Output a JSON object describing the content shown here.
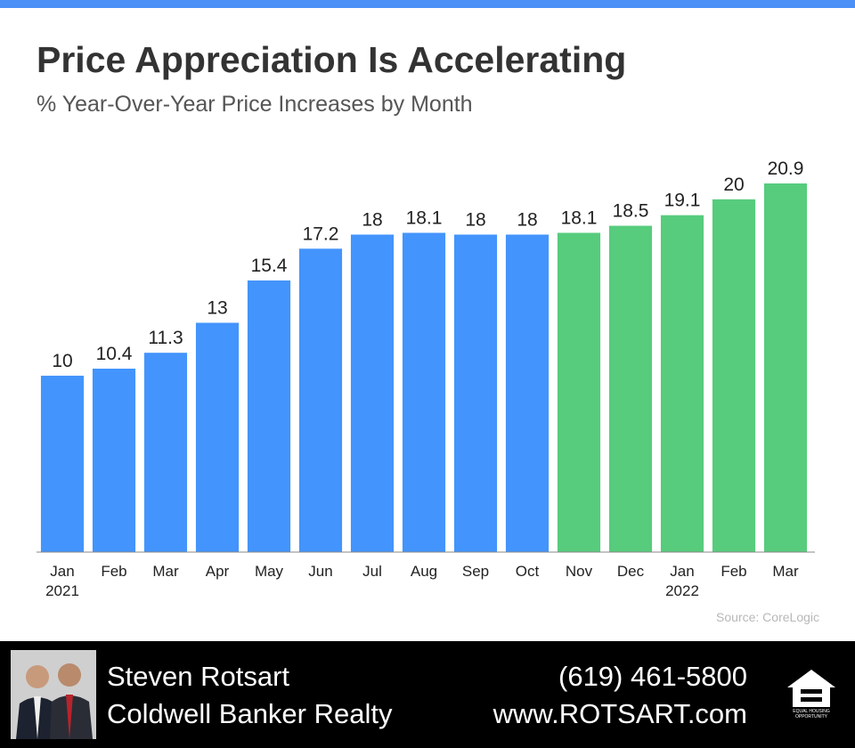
{
  "colors": {
    "top_bar": "#4a90f7",
    "blue_bar": "#4394fc",
    "green_bar": "#57cc7d",
    "axis": "#888888"
  },
  "chart_data": {
    "type": "bar",
    "title": "Price Appreciation Is Accelerating",
    "subtitle": "% Year-Over-Year Price Increases by Month",
    "categories": [
      "Jan",
      "Feb",
      "Mar",
      "Apr",
      "May",
      "Jun",
      "Jul",
      "Aug",
      "Sep",
      "Oct",
      "Nov",
      "Dec",
      "Jan",
      "Feb",
      "Mar"
    ],
    "category_years": [
      "2021",
      "",
      "",
      "",
      "",
      "",
      "",
      "",
      "",
      "",
      "",
      "",
      "2022",
      "",
      ""
    ],
    "values": [
      10,
      10.4,
      11.3,
      13,
      15.4,
      17.2,
      18,
      18.1,
      18,
      18,
      18.1,
      18.5,
      19.1,
      20,
      20.9
    ],
    "value_labels": [
      "10",
      "10.4",
      "11.3",
      "13",
      "15.4",
      "17.2",
      "18",
      "18.1",
      "18",
      "18",
      "18.1",
      "18.5",
      "19.1",
      "20",
      "20.9"
    ],
    "bar_colors": [
      "blue",
      "blue",
      "blue",
      "blue",
      "blue",
      "blue",
      "blue",
      "blue",
      "blue",
      "blue",
      "green",
      "green",
      "green",
      "green",
      "green"
    ],
    "ylim": [
      0,
      20.9
    ],
    "grid": false,
    "xlabel": "",
    "ylabel": "",
    "source": "Source: CoreLogic"
  },
  "footer": {
    "agent_name": "Steven Rotsart",
    "company": "Coldwell Banker Realty",
    "phone": "(619) 461-5800",
    "website": "www.ROTSART.com",
    "logo_icon": "equal-housing-opportunity-icon",
    "logo_text": "EQUAL HOUSING OPPORTUNITY"
  }
}
